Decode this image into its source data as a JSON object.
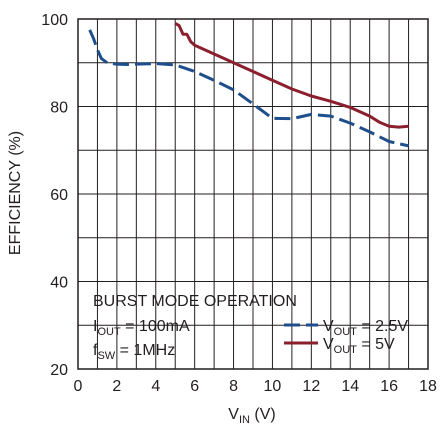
{
  "chart_data": {
    "type": "line",
    "xlabel": {
      "main": "V",
      "sub": "IN",
      "unit": " (V)"
    },
    "ylabel": "EFFICIENCY (%)",
    "xlim": [
      0,
      18
    ],
    "ylim": [
      20,
      100
    ],
    "xticks": [
      "0",
      "2",
      "4",
      "6",
      "8",
      "10",
      "12",
      "14",
      "16",
      "18"
    ],
    "yticks": [
      "20",
      "40",
      "60",
      "80",
      "100"
    ],
    "grid": true,
    "annotations": [
      {
        "main": "BURST MODE OPERATION"
      },
      {
        "main": "I",
        "sub": "OUT",
        "rest": " = 100mA"
      },
      {
        "main": "f",
        "sub": "SW",
        "rest": " = 1MHz"
      }
    ],
    "series": [
      {
        "name": {
          "main": "V",
          "sub": "OUT",
          "rest": " = 2.5V"
        },
        "color": "#1f4e8c",
        "dash": "dashed",
        "points": [
          [
            0.6,
            97.5
          ],
          [
            0.8,
            95.5
          ],
          [
            1.0,
            93.0
          ],
          [
            1.2,
            91.0
          ],
          [
            1.5,
            90.0
          ],
          [
            2.0,
            89.7
          ],
          [
            2.5,
            89.6
          ],
          [
            3.0,
            89.7
          ],
          [
            4.0,
            89.8
          ],
          [
            5.0,
            89.5
          ],
          [
            6.0,
            88.0
          ],
          [
            7.0,
            86.0
          ],
          [
            8.0,
            83.8
          ],
          [
            9.0,
            80.6
          ],
          [
            10.0,
            77.3
          ],
          [
            11.0,
            77.2
          ],
          [
            12.0,
            78.2
          ],
          [
            13.0,
            77.8
          ],
          [
            14.0,
            76.2
          ],
          [
            15.0,
            74.2
          ],
          [
            16.0,
            72.0
          ],
          [
            17.0,
            71.0
          ]
        ]
      },
      {
        "name": {
          "main": "V",
          "sub": "OUT",
          "rest": " = 5V"
        },
        "color": "#8b1f2e",
        "dash": "solid",
        "points": [
          [
            5.0,
            99.0
          ],
          [
            5.2,
            98.5
          ],
          [
            5.4,
            96.5
          ],
          [
            5.6,
            96.5
          ],
          [
            5.8,
            94.8
          ],
          [
            6.0,
            94.0
          ],
          [
            7.0,
            92.0
          ],
          [
            8.0,
            90.0
          ],
          [
            9.0,
            88.0
          ],
          [
            10.0,
            86.0
          ],
          [
            11.0,
            84.0
          ],
          [
            12.0,
            82.4
          ],
          [
            13.0,
            81.2
          ],
          [
            14.0,
            79.8
          ],
          [
            15.0,
            77.8
          ],
          [
            15.5,
            76.4
          ],
          [
            16.0,
            75.5
          ],
          [
            16.5,
            75.3
          ],
          [
            17.0,
            75.5
          ]
        ]
      }
    ]
  }
}
